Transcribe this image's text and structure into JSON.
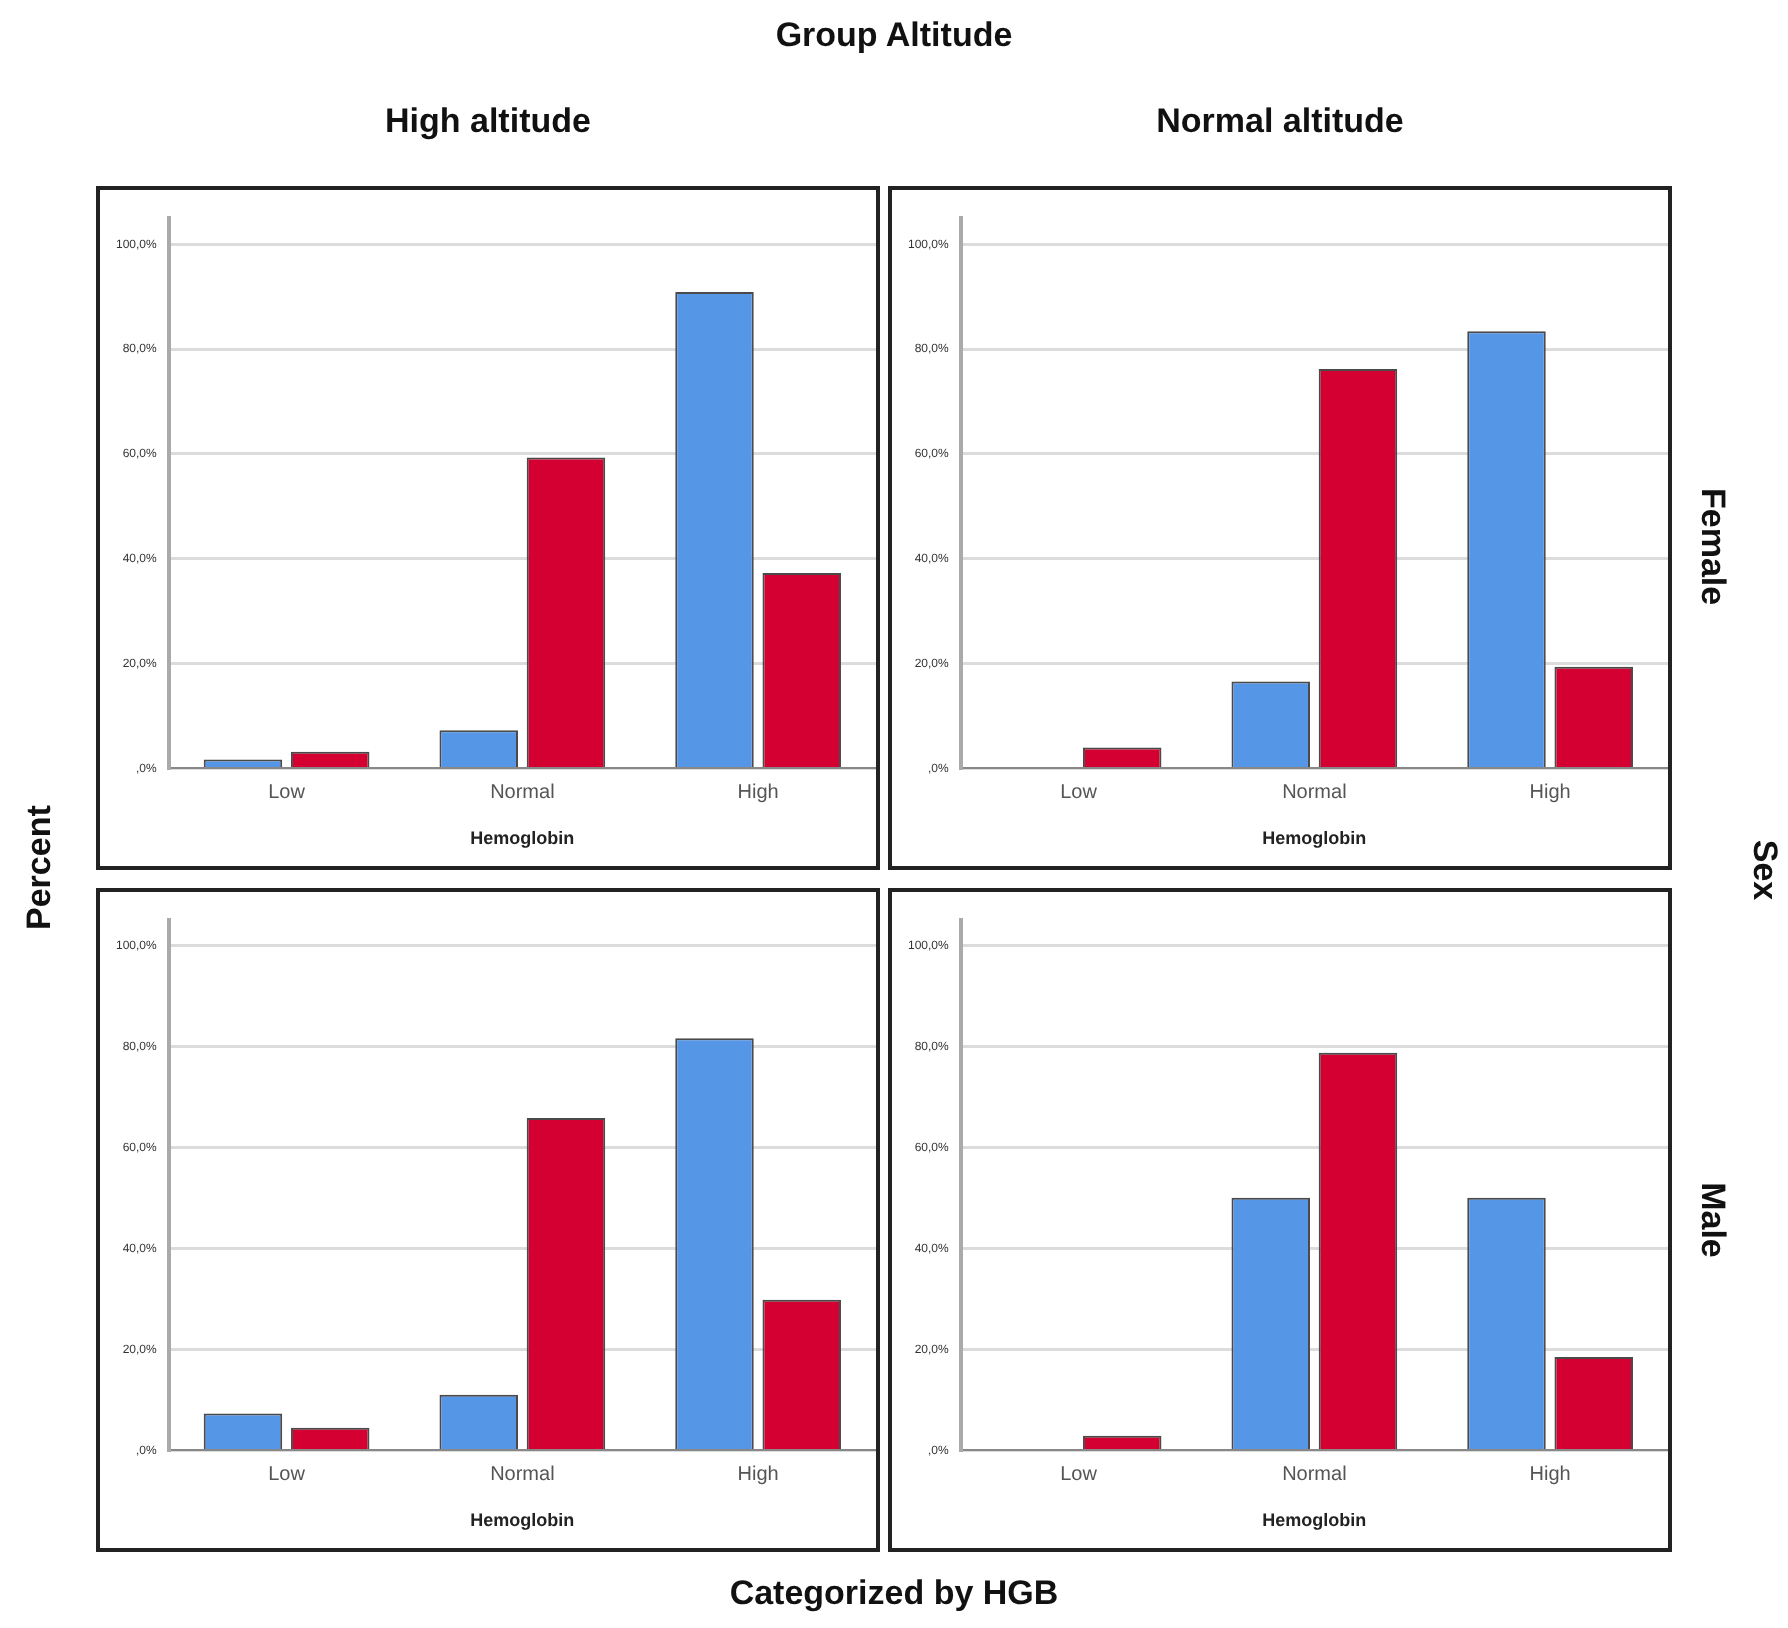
{
  "chart_data": [
    {
      "type": "bar",
      "title": "High altitude",
      "xlabel": "Hemoglobin",
      "categories": [
        "Low",
        "Normal",
        "High"
      ],
      "series": [
        {
          "color": "#5596e6",
          "values": [
            1.7,
            7.3,
            90.9
          ]
        },
        {
          "color": "#d50032",
          "values": [
            3.2,
            59.3,
            37.3
          ]
        }
      ],
      "ylim": [
        0,
        105
      ],
      "yticks": [
        {
          "value": 0,
          "label": ",0%"
        },
        {
          "value": 20,
          "label": "20,0%"
        },
        {
          "value": 40,
          "label": "40,0%"
        },
        {
          "value": 60,
          "label": "60,0%"
        },
        {
          "value": 80,
          "label": "80,0%"
        },
        {
          "value": 100,
          "label": "100,0%"
        }
      ],
      "grid": "y",
      "legend": false,
      "annotations": [
        "Group Altitude",
        "Percent",
        "Categorized by HGB",
        "Sex"
      ]
    },
    {
      "type": "bar",
      "title": "Normal altitude",
      "xlabel": "Hemoglobin",
      "y2label": "Female",
      "categories": [
        "Low",
        "Normal",
        "High"
      ],
      "series": [
        {
          "color": "#5596e6",
          "values": [
            0,
            16.6,
            83.4
          ]
        },
        {
          "color": "#d50032",
          "values": [
            4.0,
            76.2,
            19.4
          ]
        }
      ],
      "ylim": [
        0,
        105
      ],
      "yticks": [
        {
          "value": 0,
          "label": ",0%"
        },
        {
          "value": 20,
          "label": "20,0%"
        },
        {
          "value": 40,
          "label": "40,0%"
        },
        {
          "value": 60,
          "label": "60,0%"
        },
        {
          "value": 80,
          "label": "80,0%"
        },
        {
          "value": 100,
          "label": "100,0%"
        }
      ],
      "grid": "y",
      "legend": false
    },
    {
      "type": "bar",
      "xlabel": "Hemoglobin",
      "categories": [
        "Low",
        "Normal",
        "High"
      ],
      "series": [
        {
          "color": "#5596e6",
          "values": [
            7.3,
            11.0,
            81.6
          ]
        },
        {
          "color": "#d50032",
          "values": [
            4.5,
            65.8,
            29.8
          ]
        }
      ],
      "ylim": [
        0,
        105
      ],
      "yticks": [
        {
          "value": 0,
          "label": ",0%"
        },
        {
          "value": 20,
          "label": "20,0%"
        },
        {
          "value": 40,
          "label": "40,0%"
        },
        {
          "value": 60,
          "label": "60,0%"
        },
        {
          "value": 80,
          "label": "80,0%"
        },
        {
          "value": 100,
          "label": "100,0%"
        }
      ],
      "grid": "y",
      "legend": false
    },
    {
      "type": "bar",
      "xlabel": "Hemoglobin",
      "y2label": "Male",
      "categories": [
        "Low",
        "Normal",
        "High"
      ],
      "series": [
        {
          "color": "#5596e6",
          "values": [
            0,
            50,
            50
          ]
        },
        {
          "color": "#d50032",
          "values": [
            2.9,
            78.7,
            18.5
          ]
        }
      ],
      "ylim": [
        0,
        105
      ],
      "yticks": [
        {
          "value": 0,
          "label": ",0%"
        },
        {
          "value": 20,
          "label": "20,0%"
        },
        {
          "value": 40,
          "label": "40,0%"
        },
        {
          "value": 60,
          "label": "60,0%"
        },
        {
          "value": 80,
          "label": "80,0%"
        },
        {
          "value": 100,
          "label": "100,0%"
        }
      ],
      "grid": "y",
      "legend": false
    }
  ]
}
